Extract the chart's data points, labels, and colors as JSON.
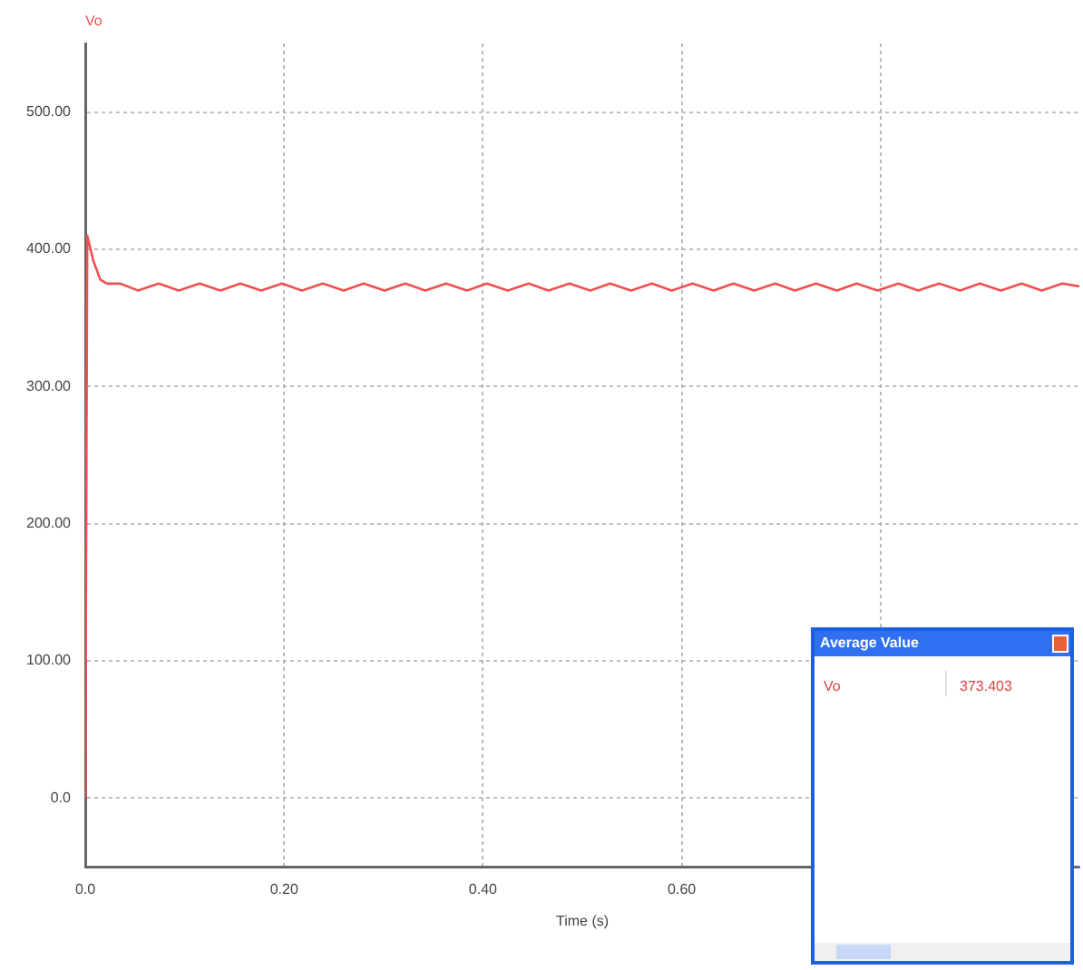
{
  "chart_data": {
    "type": "line",
    "xlabel": "Time (s)",
    "legend": "top left",
    "grid": true,
    "line_style": "solid",
    "marker": "none",
    "xlim": [
      0,
      1
    ],
    "xticks": [
      {
        "value": 0,
        "label": "0.0"
      },
      {
        "value": 0.2,
        "label": "0.20"
      },
      {
        "value": 0.4,
        "label": "0.40"
      },
      {
        "value": 0.6,
        "label": "0.60"
      },
      {
        "value": 0.8,
        "label": null
      }
    ],
    "ylim": [
      -50,
      550
    ],
    "yticks": [
      {
        "value": 0,
        "label": "0.0"
      },
      {
        "value": 100,
        "label": "100.00"
      },
      {
        "value": 200,
        "label": "200.00"
      },
      {
        "value": 300,
        "label": "300.00"
      },
      {
        "value": 400,
        "label": "400.00"
      },
      {
        "value": 500,
        "label": "500.00"
      }
    ],
    "annotations": [
      "Average Value",
      "Vo",
      "373.403"
    ],
    "series": [
      {
        "name": "Vo",
        "color": "#f05050",
        "x": [
          0,
          0.002,
          0.008,
          0.015,
          0.022,
          0.035,
          0.053,
          0.074,
          0.094,
          0.115,
          0.136,
          0.156,
          0.177,
          0.198,
          0.218,
          0.239,
          0.26,
          0.28,
          0.301,
          0.322,
          0.342,
          0.363,
          0.384,
          0.404,
          0.425,
          0.446,
          0.466,
          0.487,
          0.508,
          0.528,
          0.549,
          0.57,
          0.59,
          0.611,
          0.632,
          0.652,
          0.673,
          0.694,
          0.714,
          0.735,
          0.756,
          0.776,
          0.797,
          0.818,
          0.838,
          0.859,
          0.88,
          0.9,
          0.921,
          0.942,
          0.962,
          0.983,
          1.0
        ],
        "values": [
          0,
          410,
          392,
          378,
          375,
          375,
          370,
          375,
          370,
          375,
          370,
          375,
          370,
          375,
          370,
          375,
          370,
          375,
          370,
          375,
          370,
          375,
          370,
          375,
          370,
          375,
          370,
          375,
          370,
          375,
          370,
          375,
          370,
          375,
          370,
          375,
          370,
          375,
          370,
          375,
          370,
          375,
          370,
          375,
          370,
          375,
          370,
          375,
          370,
          375,
          370,
          375,
          373
        ]
      }
    ]
  }
}
